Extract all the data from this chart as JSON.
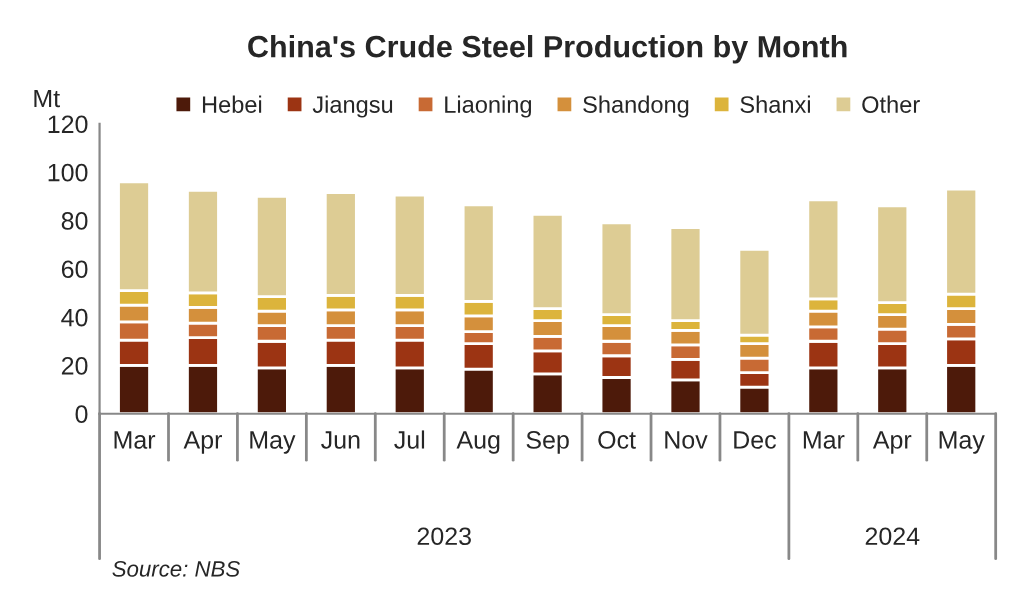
{
  "chart_data": {
    "type": "bar",
    "title": "China's Crude Steel Production by Month",
    "ylabel": "Mt",
    "categories": [
      "Mar",
      "Apr",
      "May",
      "Jun",
      "Jul",
      "Aug",
      "Sep",
      "Oct",
      "Nov",
      "Dec",
      "Mar",
      "Apr",
      "May"
    ],
    "stacked": true,
    "legend": "top",
    "grid": false,
    "ylim": [
      0,
      120
    ],
    "yticks": [
      0,
      20,
      40,
      60,
      80,
      100,
      120
    ],
    "series": [
      {
        "name": "Hebei",
        "color": "#4d1a0a",
        "values": [
          20,
          20,
          19,
          20,
          19,
          18.5,
          16.5,
          15,
          14,
          11,
          19,
          19,
          20
        ]
      },
      {
        "name": "Jiangsu",
        "color": "#9c3413",
        "values": [
          10.5,
          11.5,
          11,
          10.5,
          11.5,
          10.5,
          9.5,
          9,
          8.5,
          6,
          11,
          10,
          11
        ]
      },
      {
        "name": "Liaoning",
        "color": "#c86a34",
        "values": [
          7.5,
          6,
          6.5,
          6,
          6,
          5,
          6,
          6,
          6,
          6,
          6,
          6,
          6
        ]
      },
      {
        "name": "Shandong",
        "color": "#d4903c",
        "values": [
          7,
          6.5,
          6,
          6.5,
          6.5,
          6.5,
          6.5,
          6.5,
          6,
          6,
          6.5,
          6,
          6.5
        ]
      },
      {
        "name": "Shanxi",
        "color": "#dcb43c",
        "values": [
          6,
          6,
          6,
          6,
          6,
          6,
          5,
          4.5,
          4,
          3.5,
          5,
          5,
          6
        ]
      },
      {
        "name": "Other",
        "color": "#ddcc94",
        "values": [
          45,
          42.5,
          41.5,
          42.5,
          41.5,
          40,
          39,
          38,
          38.5,
          35.5,
          41,
          40,
          43.5
        ]
      }
    ],
    "annotations": [
      "2023",
      "2024",
      "Source: NBS"
    ]
  }
}
